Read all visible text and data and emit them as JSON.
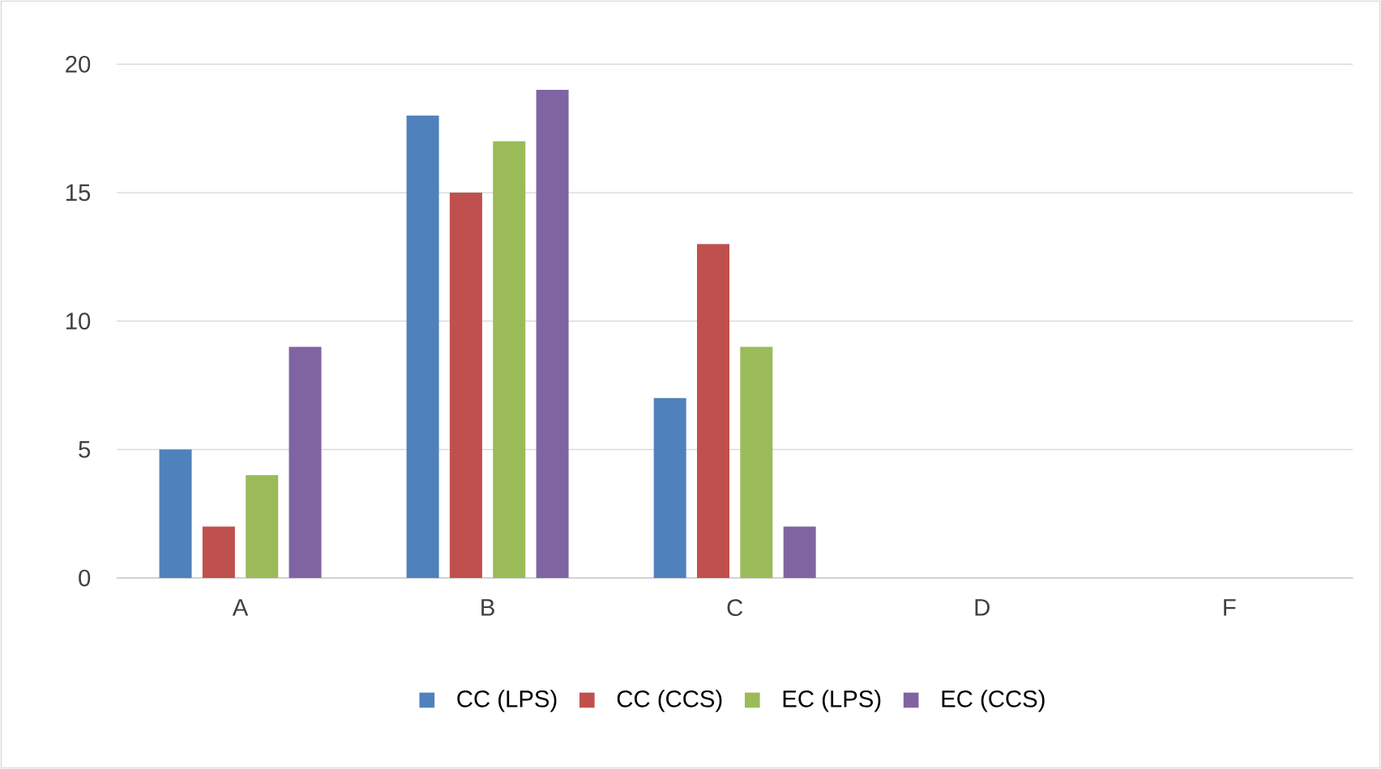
{
  "chart_data": {
    "type": "bar",
    "categories": [
      "A",
      "B",
      "C",
      "D",
      "F"
    ],
    "series": [
      {
        "name": "CC (LPS)",
        "color": "#4f81bd",
        "values": [
          5,
          18,
          7,
          null,
          null
        ]
      },
      {
        "name": "CC (CCS)",
        "color": "#c0504d",
        "values": [
          2,
          15,
          13,
          null,
          null
        ]
      },
      {
        "name": "EC (LPS)",
        "color": "#9bbb59",
        "values": [
          4,
          17,
          9,
          null,
          null
        ]
      },
      {
        "name": "EC (CCS)",
        "color": "#8064a2",
        "values": [
          9,
          19,
          2,
          null,
          null
        ]
      }
    ],
    "ylim": [
      0,
      20
    ],
    "yticks": [
      0,
      5,
      10,
      15,
      20
    ],
    "grid": "y",
    "legend": "bottom"
  }
}
